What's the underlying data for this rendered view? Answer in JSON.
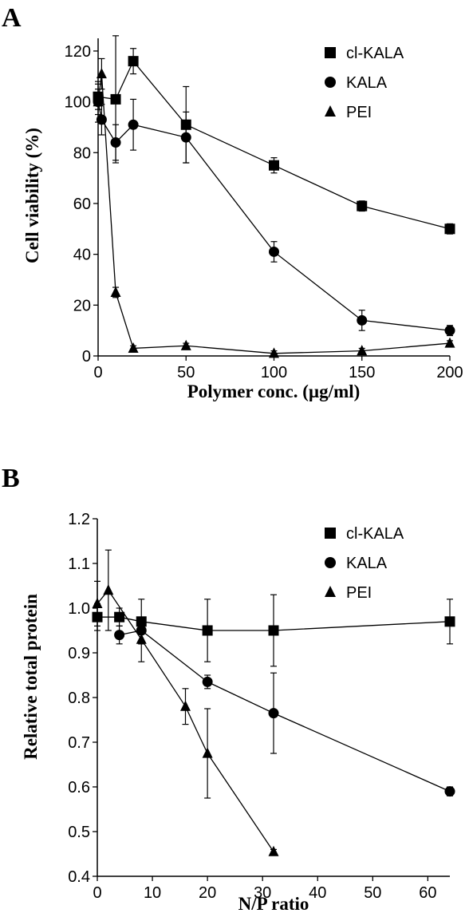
{
  "chart_data": [
    {
      "panel": "A",
      "type": "line",
      "xlabel": "Polymer conc. (µg/ml)",
      "ylabel": "Cell viability (%)",
      "xlim": [
        0,
        200
      ],
      "ylim": [
        0,
        125
      ],
      "xticks": [
        0,
        50,
        100,
        150,
        200
      ],
      "yticks": [
        0,
        20,
        40,
        60,
        80,
        100,
        120
      ],
      "legend_position": "top-right",
      "series": [
        {
          "name": "cl-KALA",
          "marker": "square",
          "x": [
            0,
            10,
            20,
            50,
            100,
            150,
            200
          ],
          "y": [
            102,
            101,
            116,
            91,
            75,
            59,
            50
          ],
          "err": [
            5,
            25,
            5,
            15,
            3,
            2,
            2
          ]
        },
        {
          "name": "KALA",
          "marker": "circle",
          "x": [
            0,
            2,
            10,
            20,
            50,
            100,
            150,
            200
          ],
          "y": [
            100,
            93,
            84,
            91,
            86,
            41,
            14,
            10
          ],
          "err": [
            8,
            6,
            7,
            10,
            10,
            4,
            4,
            2
          ]
        },
        {
          "name": "PEI",
          "marker": "triangle",
          "x": [
            0,
            2,
            10,
            20,
            50,
            100,
            150,
            200
          ],
          "y": [
            100,
            111,
            25,
            3,
            4,
            1,
            2,
            5
          ],
          "err": [
            5,
            6,
            2,
            1,
            1,
            1,
            1,
            1
          ]
        }
      ]
    },
    {
      "panel": "B",
      "type": "line",
      "xlabel": "N/P ratio",
      "ylabel": "Relative total protein",
      "xlim": [
        0,
        64
      ],
      "ylim": [
        0.4,
        1.2
      ],
      "xticks": [
        0,
        10,
        20,
        30,
        40,
        50,
        60
      ],
      "yticks": [
        "0.4",
        "0.5",
        "0.6",
        "0.7",
        "0.8",
        "0.9",
        "1.0",
        "1.1",
        "1.2"
      ],
      "legend_position": "top-right",
      "series": [
        {
          "name": "cl-KALA",
          "marker": "square",
          "x": [
            0,
            4,
            8,
            20,
            32,
            64
          ],
          "y": [
            0.98,
            0.98,
            0.97,
            0.95,
            0.95,
            0.97
          ],
          "err": [
            0.03,
            0.02,
            0.05,
            0.07,
            0.08,
            0.05
          ]
        },
        {
          "name": "KALA",
          "marker": "circle",
          "x": [
            4,
            8,
            20,
            32,
            64
          ],
          "y": [
            0.94,
            0.95,
            0.835,
            0.765,
            0.59
          ],
          "err": [
            0.02,
            0.03,
            0.015,
            0.09,
            0.01
          ]
        },
        {
          "name": "PEI",
          "marker": "triangle",
          "x": [
            0,
            2,
            8,
            16,
            20,
            32
          ],
          "y": [
            1.01,
            1.04,
            0.93,
            0.78,
            0.675,
            0.455
          ],
          "err": [
            0.05,
            0.09,
            0.05,
            0.04,
            0.1,
            0.005
          ]
        }
      ]
    }
  ]
}
